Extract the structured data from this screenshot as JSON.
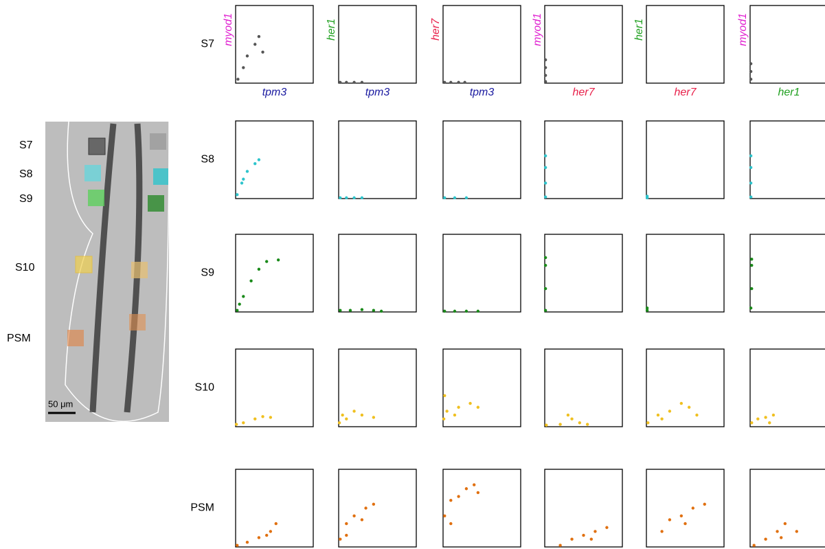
{
  "image": {
    "labels": [
      "S7",
      "S8",
      "S9",
      "S10",
      "PSM"
    ],
    "scale_bar": "50 μm"
  },
  "chart_data": {
    "type": "scatter-matrix",
    "columns": [
      {
        "x_label": "tpm3",
        "x_color": "#1a1aa0",
        "y_label": "myod1",
        "y_color": "#e020d0"
      },
      {
        "x_label": "tpm3",
        "x_color": "#1a1aa0",
        "y_label": "her1",
        "y_color": "#20a020"
      },
      {
        "x_label": "tpm3",
        "x_color": "#1a1aa0",
        "y_label": "her7",
        "y_color": "#e8204a"
      },
      {
        "x_label": "her7",
        "x_color": "#e8204a",
        "y_label": "myod1",
        "y_color": "#e020d0"
      },
      {
        "x_label": "her7",
        "x_color": "#e8204a",
        "y_label": "her1",
        "y_color": "#20a020"
      },
      {
        "x_label": "her1",
        "x_color": "#20a020",
        "y_label": "myod1",
        "y_color": "#e020d0"
      }
    ],
    "rows": [
      {
        "label": "S7",
        "color": "#555555",
        "panels": [
          {
            "x": [
              0.03,
              0.1,
              0.15,
              0.25,
              0.3,
              0.35
            ],
            "y": [
              0.05,
              0.2,
              0.35,
              0.5,
              0.6,
              0.4
            ]
          },
          {
            "x": [
              0.02,
              0.1,
              0.2,
              0.3
            ],
            "y": [
              0.01,
              0.01,
              0.01,
              0.01
            ]
          },
          {
            "x": [
              0.02,
              0.1,
              0.2,
              0.28
            ],
            "y": [
              0.01,
              0.01,
              0.01,
              0.01
            ]
          },
          {
            "x": [
              0.01,
              0.01,
              0.01,
              0.01
            ],
            "y": [
              0.02,
              0.1,
              0.2,
              0.3
            ]
          },
          {
            "x": [],
            "y": []
          },
          {
            "x": [
              0.01,
              0.01,
              0.01
            ],
            "y": [
              0.05,
              0.15,
              0.25
            ]
          }
        ]
      },
      {
        "label": "S8",
        "color": "#2ec4cc",
        "panels": [
          {
            "x": [
              0.02,
              0.08,
              0.15,
              0.25,
              0.3,
              0.1
            ],
            "y": [
              0.05,
              0.2,
              0.35,
              0.45,
              0.5,
              0.25
            ]
          },
          {
            "x": [
              0.02,
              0.1,
              0.2,
              0.3
            ],
            "y": [
              0.01,
              0.01,
              0.01,
              0.01
            ]
          },
          {
            "x": [
              0.02,
              0.15,
              0.3
            ],
            "y": [
              0.01,
              0.01,
              0.01
            ]
          },
          {
            "x": [
              0.01,
              0.01,
              0.01,
              0.01
            ],
            "y": [
              0.02,
              0.2,
              0.4,
              0.55
            ]
          },
          {
            "x": [
              0.01,
              0.01
            ],
            "y": [
              0.01,
              0.03
            ]
          },
          {
            "x": [
              0.01,
              0.01,
              0.01,
              0.01
            ],
            "y": [
              0.02,
              0.2,
              0.4,
              0.55
            ]
          }
        ]
      },
      {
        "label": "S9",
        "color": "#1a8a1a",
        "panels": [
          {
            "x": [
              0.02,
              0.1,
              0.2,
              0.3,
              0.4,
              0.55,
              0.05
            ],
            "y": [
              0.02,
              0.2,
              0.4,
              0.55,
              0.65,
              0.67,
              0.1
            ]
          },
          {
            "x": [
              0.02,
              0.15,
              0.3,
              0.45,
              0.55
            ],
            "y": [
              0.02,
              0.02,
              0.03,
              0.02,
              0.01
            ]
          },
          {
            "x": [
              0.02,
              0.15,
              0.3,
              0.45
            ],
            "y": [
              0.01,
              0.01,
              0.01,
              0.01
            ]
          },
          {
            "x": [
              0.01,
              0.01,
              0.01,
              0.01
            ],
            "y": [
              0.02,
              0.3,
              0.6,
              0.7
            ]
          },
          {
            "x": [
              0.01,
              0.01
            ],
            "y": [
              0.02,
              0.05
            ]
          },
          {
            "x": [
              0.01,
              0.02,
              0.02,
              0.02
            ],
            "y": [
              0.05,
              0.3,
              0.6,
              0.68
            ]
          }
        ]
      },
      {
        "label": "S10",
        "color": "#f0c020",
        "panels": [
          {
            "x": [
              0.01,
              0.1,
              0.25,
              0.35,
              0.45
            ],
            "y": [
              0.03,
              0.05,
              0.1,
              0.13,
              0.12
            ]
          },
          {
            "x": [
              0.01,
              0.05,
              0.1,
              0.2,
              0.3,
              0.45
            ],
            "y": [
              0.05,
              0.15,
              0.1,
              0.2,
              0.15,
              0.12
            ]
          },
          {
            "x": [
              0.01,
              0.02,
              0.05,
              0.2,
              0.35,
              0.45,
              0.15
            ],
            "y": [
              0.1,
              0.4,
              0.2,
              0.25,
              0.3,
              0.25,
              0.15
            ]
          },
          {
            "x": [
              0.02,
              0.2,
              0.35,
              0.45,
              0.55,
              0.3
            ],
            "y": [
              0.02,
              0.03,
              0.1,
              0.05,
              0.03,
              0.15
            ]
          },
          {
            "x": [
              0.02,
              0.15,
              0.3,
              0.45,
              0.55,
              0.65,
              0.2
            ],
            "y": [
              0.05,
              0.15,
              0.2,
              0.3,
              0.25,
              0.15,
              0.1
            ]
          },
          {
            "x": [
              0.02,
              0.1,
              0.2,
              0.3,
              0.25
            ],
            "y": [
              0.05,
              0.1,
              0.12,
              0.15,
              0.05
            ]
          }
        ]
      },
      {
        "label": "PSM",
        "color": "#e07010",
        "panels": [
          {
            "x": [
              0.02,
              0.15,
              0.3,
              0.45,
              0.52,
              0.4
            ],
            "y": [
              0.02,
              0.06,
              0.12,
              0.2,
              0.3,
              0.15
            ]
          },
          {
            "x": [
              0.02,
              0.1,
              0.2,
              0.35,
              0.45,
              0.3,
              0.1
            ],
            "y": [
              0.1,
              0.3,
              0.4,
              0.5,
              0.55,
              0.35,
              0.15
            ]
          },
          {
            "x": [
              0.02,
              0.1,
              0.2,
              0.3,
              0.4,
              0.45,
              0.1
            ],
            "y": [
              0.4,
              0.6,
              0.65,
              0.75,
              0.8,
              0.7,
              0.3
            ]
          },
          {
            "x": [
              0.2,
              0.35,
              0.5,
              0.65,
              0.8,
              0.6
            ],
            "y": [
              0.02,
              0.1,
              0.15,
              0.2,
              0.25,
              0.1
            ]
          },
          {
            "x": [
              0.2,
              0.3,
              0.45,
              0.6,
              0.75,
              0.5
            ],
            "y": [
              0.2,
              0.35,
              0.4,
              0.5,
              0.55,
              0.3
            ]
          },
          {
            "x": [
              0.05,
              0.2,
              0.35,
              0.45,
              0.6,
              0.4
            ],
            "y": [
              0.02,
              0.1,
              0.2,
              0.3,
              0.2,
              0.12
            ]
          }
        ]
      }
    ]
  }
}
